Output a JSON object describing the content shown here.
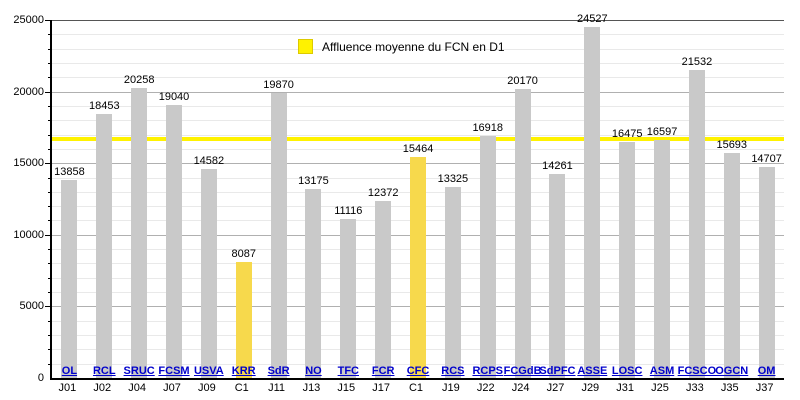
{
  "chart_data": {
    "type": "bar",
    "title": "",
    "xlabel": "",
    "ylabel": "",
    "ylim": [
      0,
      25000
    ],
    "yticks": [
      0,
      5000,
      10000,
      15000,
      20000,
      25000
    ],
    "minor_grid_step": 1000,
    "major_grid_step": 5000,
    "grid": "on",
    "legend_label": "Affluence moyenne du FCN en D1",
    "legend_position": "top-center",
    "average_line_value": 16680,
    "bars": [
      {
        "opponent": "OL",
        "day": "J01",
        "value": 13858,
        "highlight": false
      },
      {
        "opponent": "RCL",
        "day": "J02",
        "value": 18453,
        "highlight": false
      },
      {
        "opponent": "SRUC",
        "day": "J04",
        "value": 20258,
        "highlight": false
      },
      {
        "opponent": "FCSM",
        "day": "J07",
        "value": 19040,
        "highlight": false
      },
      {
        "opponent": "USVA",
        "day": "J09",
        "value": 14582,
        "highlight": false
      },
      {
        "opponent": "KRR",
        "day": "C1",
        "value": 8087,
        "highlight": true
      },
      {
        "opponent": "SdR",
        "day": "J11",
        "value": 19870,
        "highlight": false
      },
      {
        "opponent": "NO",
        "day": "J13",
        "value": 13175,
        "highlight": false
      },
      {
        "opponent": "TFC",
        "day": "J15",
        "value": 11116,
        "highlight": false
      },
      {
        "opponent": "FCR",
        "day": "J17",
        "value": 12372,
        "highlight": false
      },
      {
        "opponent": "CFC",
        "day": "C1",
        "value": 15464,
        "highlight": true
      },
      {
        "opponent": "RCS",
        "day": "J19",
        "value": 13325,
        "highlight": false
      },
      {
        "opponent": "RCPS",
        "day": "J22",
        "value": 16918,
        "highlight": false
      },
      {
        "opponent": "FCGdB",
        "day": "J24",
        "value": 20170,
        "highlight": false
      },
      {
        "opponent": "SdPFC",
        "day": "J27",
        "value": 14261,
        "highlight": false
      },
      {
        "opponent": "ASSE",
        "day": "J29",
        "value": 24527,
        "highlight": false
      },
      {
        "opponent": "LOSC",
        "day": "J31",
        "value": 16475,
        "highlight": false
      },
      {
        "opponent": "ASM",
        "day": "J25",
        "value": 16597,
        "highlight": false
      },
      {
        "opponent": "FCSCO",
        "day": "J33",
        "value": 21532,
        "highlight": false
      },
      {
        "opponent": "OGCN",
        "day": "J35",
        "value": 15693,
        "highlight": false
      },
      {
        "opponent": "OM",
        "day": "J37",
        "value": 14707,
        "highlight": false
      }
    ],
    "colors": {
      "bar": "#C9C9C9",
      "bar_highlight": "#F7D94C",
      "avg_line": "#FFF200",
      "legend_swatch": "#FFF200",
      "link_blue": "#0000CC"
    }
  }
}
